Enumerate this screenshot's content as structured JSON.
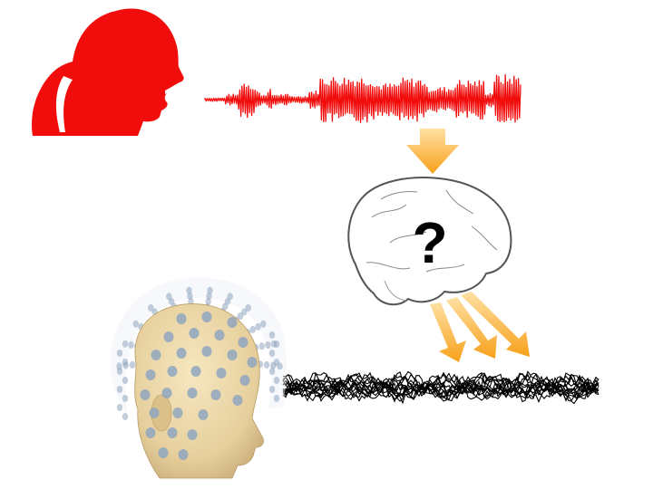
{
  "brain": {
    "label": "?"
  },
  "colors": {
    "speaker": "#f20d0d",
    "speech_waveform": "#f20d0d",
    "arrow": "#f7a11a",
    "brain_fill": "#ffffff",
    "brain_outline": "#555555",
    "eeg_trace": "#000000",
    "head_skin": "#ecd9aa",
    "electrode": "#8fa6bf"
  },
  "icons": {
    "speaker": "speaking-person-silhouette-icon",
    "brain": "brain-icon",
    "head": "eeg-head-model-icon"
  }
}
